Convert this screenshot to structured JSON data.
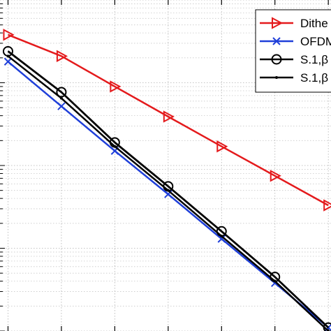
{
  "chart_data": {
    "type": "line",
    "title": "",
    "xlabel": "",
    "ylabel": "",
    "x": [
      0,
      1,
      2,
      3,
      4,
      5,
      6
    ],
    "xlim": [
      -0.15,
      6.05
    ],
    "yscale": "log",
    "ylim": [
      0.0001,
      1
    ],
    "grid": true,
    "minor_grid": true,
    "legend_position": "top-right",
    "series": [
      {
        "name": "Dithe",
        "color": "#e41a1c",
        "marker": "triangle-right",
        "values": [
          0.38,
          0.21,
          0.09,
          0.039,
          0.017,
          0.0075,
          0.0033
        ]
      },
      {
        "name": "OFDM",
        "color": "#1f3fd9",
        "marker": "x",
        "values": [
          0.18,
          0.052,
          0.015,
          0.0045,
          0.0013,
          0.00038,
          0.00011
        ]
      },
      {
        "name": "S.1,β",
        "color": "#000000",
        "marker": "circle",
        "values": [
          0.24,
          0.077,
          0.019,
          0.0056,
          0.0016,
          0.00045,
          0.00011
        ]
      },
      {
        "name": "S.1,β",
        "color": "#000000",
        "marker": "dot",
        "values": [
          0.21,
          0.065,
          0.017,
          0.005,
          0.0014,
          0.0004,
          0.0001
        ]
      }
    ]
  }
}
